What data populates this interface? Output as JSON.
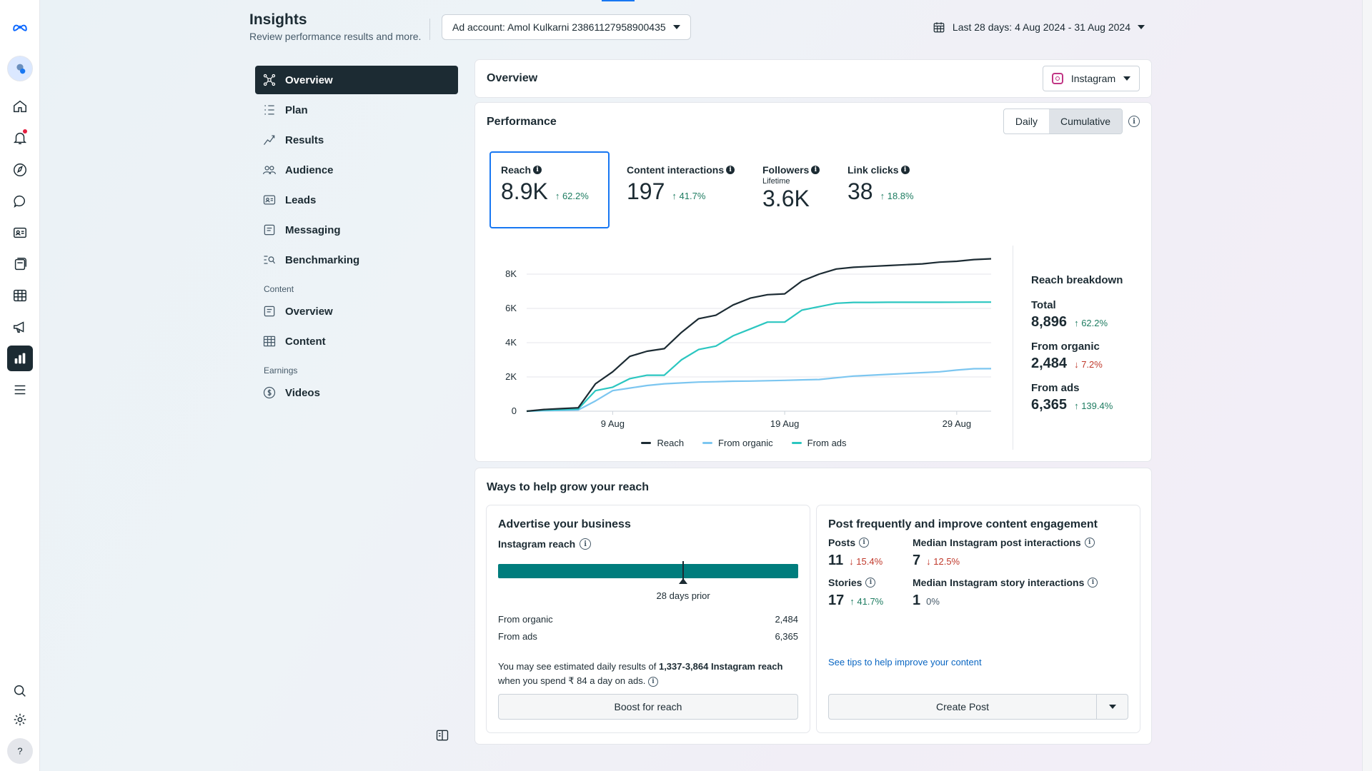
{
  "header": {
    "title": "Insights",
    "subtitle": "Review performance results and more.",
    "ad_account": "Ad account: Amol Kulkarni 23861127958900435",
    "date_range": "Last 28 days: 4 Aug 2024 - 31 Aug 2024"
  },
  "nav": {
    "items": [
      {
        "label": "Overview",
        "icon": "overview-icon"
      },
      {
        "label": "Plan",
        "icon": "plan-icon"
      },
      {
        "label": "Results",
        "icon": "results-icon"
      },
      {
        "label": "Audience",
        "icon": "audience-icon"
      },
      {
        "label": "Leads",
        "icon": "leads-icon"
      },
      {
        "label": "Messaging",
        "icon": "messaging-icon"
      },
      {
        "label": "Benchmarking",
        "icon": "benchmarking-icon"
      }
    ],
    "content_section": "Content",
    "content_items": [
      {
        "label": "Overview",
        "icon": "content-overview-icon"
      },
      {
        "label": "Content",
        "icon": "content-table-icon"
      }
    ],
    "earnings_section": "Earnings",
    "earnings_items": [
      {
        "label": "Videos",
        "icon": "videos-icon"
      }
    ]
  },
  "overview": {
    "title": "Overview",
    "platform": "Instagram"
  },
  "performance": {
    "title": "Performance",
    "toggle": [
      "Daily",
      "Cumulative"
    ],
    "selected_toggle": "Cumulative",
    "metrics": [
      {
        "label": "Reach",
        "value": "8.9K",
        "delta": "62.2%",
        "direction": "up"
      },
      {
        "label": "Content interactions",
        "value": "197",
        "delta": "41.7%",
        "direction": "up"
      },
      {
        "label": "Followers",
        "sub": "Lifetime",
        "value": "3.6K"
      },
      {
        "label": "Link clicks",
        "value": "38",
        "delta": "18.8%",
        "direction": "up"
      }
    ],
    "breakdown": {
      "title": "Reach breakdown",
      "rows": [
        {
          "label": "Total",
          "value": "8,896",
          "delta": "62.2%",
          "direction": "up"
        },
        {
          "label": "From organic",
          "value": "2,484",
          "delta": "7.2%",
          "direction": "down"
        },
        {
          "label": "From ads",
          "value": "6,365",
          "delta": "139.4%",
          "direction": "up"
        }
      ]
    }
  },
  "chart_data": {
    "type": "line",
    "title": "",
    "xlabel": "",
    "ylabel": "",
    "x": [
      1,
      2,
      3,
      4,
      5,
      6,
      7,
      8,
      9,
      10,
      11,
      12,
      13,
      14,
      15,
      16,
      17,
      18,
      19,
      20,
      21,
      22,
      23,
      24,
      25,
      26,
      27,
      28
    ],
    "xticks": [
      {
        "at": 6,
        "label": "9 Aug"
      },
      {
        "at": 16,
        "label": "19 Aug"
      },
      {
        "at": 26,
        "label": "29 Aug"
      }
    ],
    "ylim": [
      0,
      9000
    ],
    "yticks": [
      {
        "at": 0,
        "label": "0"
      },
      {
        "at": 2000,
        "label": "2K"
      },
      {
        "at": 4000,
        "label": "4K"
      },
      {
        "at": 6000,
        "label": "6K"
      },
      {
        "at": 8000,
        "label": "8K"
      }
    ],
    "grid": true,
    "series": [
      {
        "name": "Reach",
        "color": "#1c2b33",
        "values": [
          0,
          100,
          150,
          200,
          1600,
          2300,
          3200,
          3500,
          3650,
          4600,
          5400,
          5600,
          6200,
          6600,
          6800,
          6850,
          7600,
          8000,
          8300,
          8400,
          8450,
          8500,
          8550,
          8600,
          8700,
          8750,
          8850,
          8896
        ]
      },
      {
        "name": "From organic",
        "color": "#7cc6f0",
        "values": [
          0,
          30,
          50,
          70,
          600,
          1200,
          1350,
          1500,
          1600,
          1650,
          1700,
          1720,
          1750,
          1760,
          1780,
          1800,
          1830,
          1850,
          1950,
          2050,
          2100,
          2150,
          2200,
          2250,
          2300,
          2400,
          2480,
          2484
        ]
      },
      {
        "name": "From ads",
        "color": "#2bc6c0",
        "values": [
          0,
          70,
          100,
          130,
          1200,
          1400,
          1900,
          2100,
          2100,
          3000,
          3600,
          3800,
          4400,
          4800,
          5200,
          5200,
          5900,
          6100,
          6300,
          6350,
          6350,
          6360,
          6360,
          6360,
          6360,
          6362,
          6365,
          6365
        ]
      }
    ]
  },
  "grow": {
    "title": "Ways to help grow your reach",
    "advertise": {
      "title": "Advertise your business",
      "subtitle": "Instagram reach",
      "bar_marker_fraction": 0.617,
      "caption": "28 days prior",
      "rows": [
        {
          "label": "From organic",
          "value": "2,484"
        },
        {
          "label": "From ads",
          "value": "6,365"
        }
      ],
      "est_prefix": "You may see estimated daily results of ",
      "est_bold": "1,337-3,864 Instagram reach",
      "est_suffix": " when you spend ₹ 84 a day on ads.",
      "button": "Boost for reach"
    },
    "post": {
      "title": "Post frequently and improve content engagement",
      "stats": [
        {
          "label": "Posts",
          "value": "11",
          "delta": "15.4%",
          "direction": "down"
        },
        {
          "label": "Median Instagram post interactions",
          "value": "7",
          "delta": "12.5%",
          "direction": "down"
        },
        {
          "label": "Stories",
          "value": "17",
          "delta": "41.7%",
          "direction": "up"
        },
        {
          "label": "Median Instagram story interactions",
          "value": "1",
          "delta": "0%",
          "direction": "none"
        }
      ],
      "link": "See tips to help improve your content",
      "button": "Create Post"
    }
  },
  "colors": {
    "brand_dark": "#1c2b33",
    "accent_blue": "#1877f2",
    "teal_bar": "#007d7d",
    "up_green": "#1e7c61",
    "down_red": "#c0392b"
  }
}
